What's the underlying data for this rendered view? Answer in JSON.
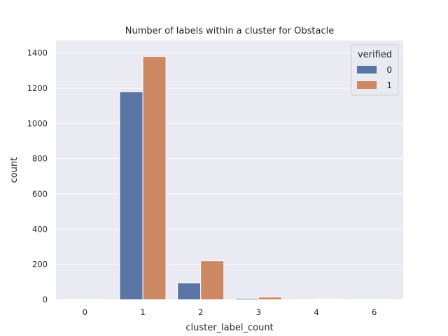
{
  "chart_data": {
    "type": "bar",
    "title": "Number of labels within a cluster for Obstacle",
    "xlabel": "cluster_label_count",
    "ylabel": "count",
    "categories": [
      "0",
      "1",
      "2",
      "3",
      "4",
      "6"
    ],
    "series": [
      {
        "name": "0",
        "values": [
          1,
          1180,
          95,
          7,
          2,
          1
        ],
        "color": "#5875a4"
      },
      {
        "name": "1",
        "values": [
          1,
          1380,
          220,
          15,
          3,
          1
        ],
        "color": "#cc8963"
      }
    ],
    "ylim": [
      0,
      1470
    ],
    "yticks": [
      0,
      200,
      400,
      600,
      800,
      1000,
      1200,
      1400
    ],
    "grid": true,
    "legend": {
      "title": "verified",
      "placement": "top-right"
    },
    "colors": {
      "background": "#eaeaf2",
      "grid": "#ffffff"
    }
  }
}
